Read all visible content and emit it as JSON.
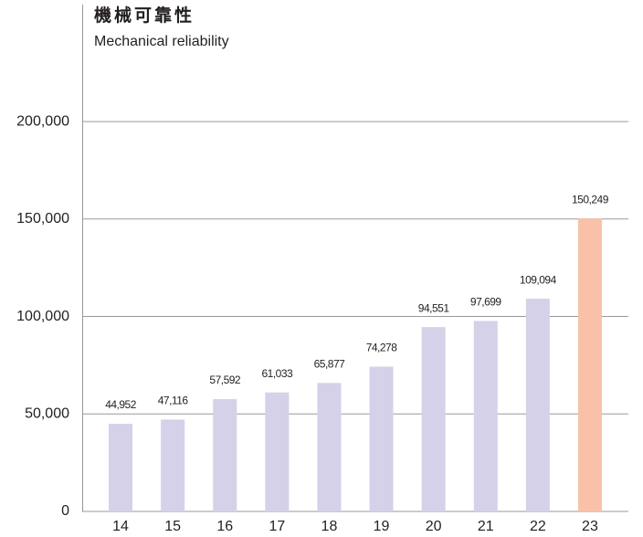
{
  "chart_data": {
    "type": "bar",
    "title": "機械可靠性",
    "subtitle": "Mechanical reliability",
    "categories": [
      "14",
      "15",
      "16",
      "17",
      "18",
      "19",
      "20",
      "21",
      "22",
      "23"
    ],
    "values": [
      44952,
      47116,
      57592,
      61033,
      65877,
      74278,
      94551,
      97699,
      109094,
      150249
    ],
    "value_labels": [
      "44,952",
      "47,116",
      "57,592",
      "61,033",
      "65,877",
      "74,278",
      "94,551",
      "97,699",
      "109,094",
      "150,249"
    ],
    "colors": [
      "#d4d1e9",
      "#d4d1e9",
      "#d4d1e9",
      "#d4d1e9",
      "#d4d1e9",
      "#d4d1e9",
      "#d4d1e9",
      "#d4d1e9",
      "#d4d1e9",
      "#f8c1a8"
    ],
    "ylim": [
      0,
      260000
    ],
    "yticks": [
      0,
      {
        "value": 50000,
        "label": "50,000"
      },
      {
        "value": 100000,
        "label": "100,000"
      },
      {
        "value": 150000,
        "label": "150,000"
      },
      {
        "value": 200000,
        "label": "200,000"
      }
    ],
    "grid": true
  }
}
